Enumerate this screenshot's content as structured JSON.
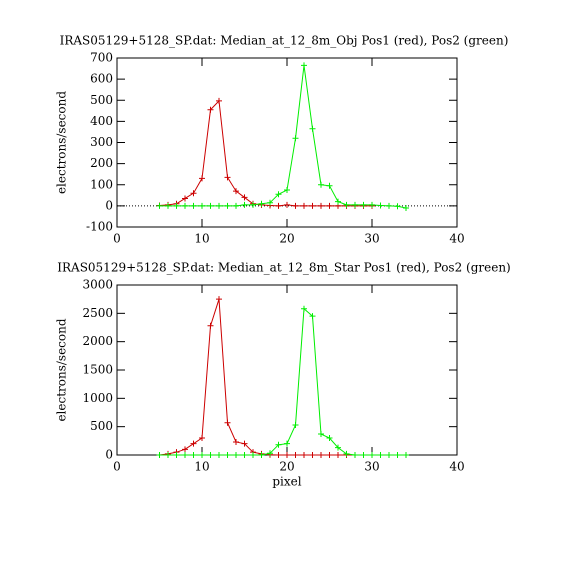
{
  "chart_data": [
    {
      "type": "line",
      "title": "IRAS05129+5128_SP.dat: Median_at_12_8m_Obj Pos1 (red), Pos2 (green)",
      "ylabel": "electrons/second",
      "xlim": [
        0,
        40
      ],
      "xticks": [
        0,
        10,
        20,
        30,
        40
      ],
      "ylim": [
        -100,
        700
      ],
      "yticks": [
        -100,
        0,
        100,
        200,
        300,
        400,
        500,
        600,
        700
      ],
      "zero_line": true,
      "series": [
        {
          "color": "#cc0000",
          "x": [
            5,
            6,
            7,
            8,
            9,
            10,
            11,
            12,
            13,
            14,
            15,
            16,
            17,
            18,
            19,
            20,
            21,
            22,
            23,
            24,
            25,
            26,
            27,
            28,
            29,
            30
          ],
          "values": [
            2,
            5,
            10,
            35,
            60,
            130,
            455,
            497,
            135,
            70,
            40,
            10,
            5,
            2,
            0,
            5,
            0,
            0,
            0,
            0,
            0,
            0,
            0,
            0,
            0,
            0
          ]
        },
        {
          "color": "#00ee00",
          "x": [
            5,
            6,
            7,
            8,
            9,
            10,
            11,
            12,
            13,
            14,
            15,
            16,
            17,
            18,
            19,
            20,
            21,
            22,
            23,
            24,
            25,
            26,
            27,
            28,
            29,
            30,
            31,
            32,
            33,
            34
          ],
          "values": [
            0,
            0,
            0,
            0,
            0,
            0,
            0,
            0,
            0,
            0,
            5,
            5,
            10,
            15,
            55,
            75,
            320,
            665,
            365,
            100,
            95,
            20,
            5,
            5,
            5,
            5,
            2,
            0,
            -2,
            -10
          ]
        }
      ]
    },
    {
      "type": "line",
      "title": "IRAS05129+5128_SP.dat: Median_at_12_8m_Star Pos1 (red), Pos2 (green)",
      "ylabel": "electrons/second",
      "xlabel": "pixel",
      "xlim": [
        0,
        40
      ],
      "xticks": [
        0,
        10,
        20,
        30,
        40
      ],
      "ylim": [
        0,
        3000
      ],
      "yticks": [
        0,
        500,
        1000,
        1500,
        2000,
        2500,
        3000
      ],
      "zero_line": false,
      "series": [
        {
          "color": "#cc0000",
          "x": [
            5,
            6,
            7,
            8,
            9,
            10,
            11,
            12,
            13,
            14,
            15,
            16,
            17,
            18,
            19,
            20,
            21,
            22,
            23,
            24,
            25,
            26,
            27,
            28,
            29,
            30
          ],
          "values": [
            0,
            20,
            50,
            100,
            200,
            300,
            2280,
            2750,
            570,
            230,
            200,
            50,
            20,
            5,
            0,
            0,
            0,
            0,
            0,
            0,
            0,
            0,
            0,
            0,
            0,
            0
          ]
        },
        {
          "color": "#00ee00",
          "x": [
            5,
            6,
            7,
            8,
            9,
            10,
            11,
            12,
            13,
            14,
            15,
            16,
            17,
            18,
            19,
            20,
            21,
            22,
            23,
            24,
            25,
            26,
            27,
            28,
            29,
            30,
            31,
            32,
            33,
            34
          ],
          "values": [
            0,
            0,
            0,
            0,
            0,
            0,
            0,
            0,
            0,
            0,
            0,
            0,
            0,
            30,
            180,
            200,
            530,
            2580,
            2450,
            370,
            300,
            130,
            20,
            0,
            0,
            0,
            0,
            0,
            0,
            0
          ]
        }
      ]
    }
  ]
}
